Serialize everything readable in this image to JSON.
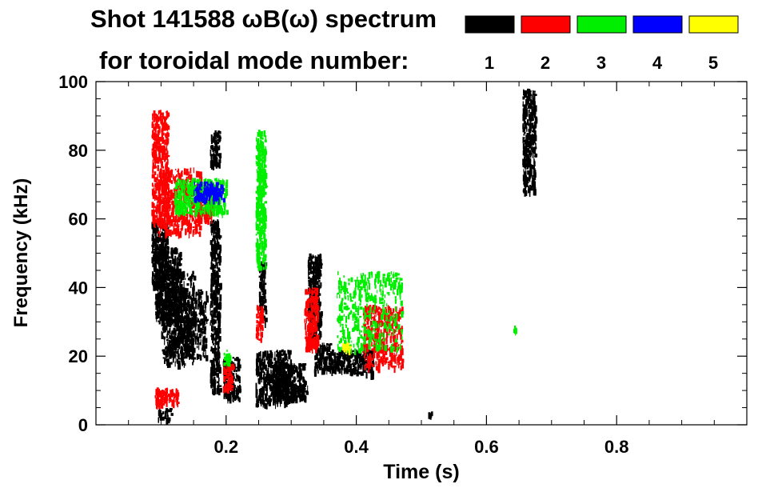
{
  "chart_data": {
    "type": "scatter",
    "title_line1": "Shot 141588 ωB(ω) spectrum",
    "title_line2": "for toroidal mode number:",
    "xlabel": "Time (s)",
    "ylabel": "Frequency (kHz)",
    "xlim": [
      0,
      1.0
    ],
    "ylim": [
      0,
      100
    ],
    "x_ticks": [
      0.2,
      0.4,
      0.6,
      0.8
    ],
    "x_tick_labels": [
      "0.2",
      "0.4",
      "0.6",
      "0.8"
    ],
    "y_ticks": [
      0,
      20,
      40,
      60,
      80,
      100
    ],
    "y_tick_labels": [
      "0",
      "20",
      "40",
      "60",
      "80",
      "100"
    ],
    "legend": [
      {
        "label": "1",
        "color": "#000000"
      },
      {
        "label": "2",
        "color": "#ff0000"
      },
      {
        "label": "3",
        "color": "#00ee00"
      },
      {
        "label": "4",
        "color": "#0000ff"
      },
      {
        "label": "5",
        "color": "#ffff00"
      }
    ],
    "series": [
      {
        "name": "1",
        "color": "#000000",
        "blobs": [
          {
            "t": [
              0.085,
              0.11
            ],
            "f": [
              40,
              60
            ]
          },
          {
            "t": [
              0.09,
              0.13
            ],
            "f": [
              30,
              52
            ]
          },
          {
            "t": [
              0.1,
              0.15
            ],
            "f": [
              18,
              45
            ]
          },
          {
            "t": [
              0.11,
              0.17
            ],
            "f": [
              20,
              40
            ]
          },
          {
            "t": [
              0.095,
              0.115
            ],
            "f": [
              2,
              5
            ]
          },
          {
            "t": [
              0.175,
              0.19
            ],
            "f": [
              76,
              86
            ]
          },
          {
            "t": [
              0.175,
              0.19
            ],
            "f": [
              10,
              60
            ]
          },
          {
            "t": [
              0.195,
              0.22
            ],
            "f": [
              8,
              20
            ]
          },
          {
            "t": [
              0.245,
              0.3
            ],
            "f": [
              6,
              22
            ]
          },
          {
            "t": [
              0.27,
              0.32
            ],
            "f": [
              8,
              18
            ]
          },
          {
            "t": [
              0.3,
              0.325
            ],
            "f": [
              8,
              12
            ]
          },
          {
            "t": [
              0.335,
              0.36
            ],
            "f": [
              16,
              24
            ]
          },
          {
            "t": [
              0.36,
              0.39
            ],
            "f": [
              16,
              22
            ]
          },
          {
            "t": [
              0.39,
              0.425
            ],
            "f": [
              15,
              22
            ]
          },
          {
            "t": [
              0.655,
              0.675
            ],
            "f": [
              68,
              98
            ]
          },
          {
            "t": [
              0.51,
              0.515
            ],
            "f": [
              3,
              4
            ]
          },
          {
            "t": [
              0.25,
              0.26
            ],
            "f": [
              30,
              48
            ]
          },
          {
            "t": [
              0.325,
              0.345
            ],
            "f": [
              25,
              50
            ]
          }
        ]
      },
      {
        "name": "2",
        "color": "#ff0000",
        "blobs": [
          {
            "t": [
              0.085,
              0.11
            ],
            "f": [
              58,
              92
            ]
          },
          {
            "t": [
              0.095,
              0.16
            ],
            "f": [
              56,
              75
            ]
          },
          {
            "t": [
              0.155,
              0.18
            ],
            "f": [
              60,
              70
            ]
          },
          {
            "t": [
              0.09,
              0.125
            ],
            "f": [
              6,
              11
            ]
          },
          {
            "t": [
              0.245,
              0.255
            ],
            "f": [
              25,
              35
            ]
          },
          {
            "t": [
              0.32,
              0.34
            ],
            "f": [
              22,
              40
            ]
          },
          {
            "t": [
              0.41,
              0.47
            ],
            "f": [
              17,
              35
            ]
          },
          {
            "t": [
              0.195,
              0.21
            ],
            "f": [
              10,
              18
            ]
          }
        ]
      },
      {
        "name": "3",
        "color": "#00ee00",
        "blobs": [
          {
            "t": [
              0.12,
              0.2
            ],
            "f": [
              62,
              72
            ]
          },
          {
            "t": [
              0.245,
              0.26
            ],
            "f": [
              46,
              86
            ]
          },
          {
            "t": [
              0.37,
              0.47
            ],
            "f": [
              22,
              45
            ]
          },
          {
            "t": [
              0.64,
              0.645
            ],
            "f": [
              27,
              29
            ]
          },
          {
            "t": [
              0.195,
              0.205
            ],
            "f": [
              18,
              22
            ]
          }
        ]
      },
      {
        "name": "4",
        "color": "#0000ff",
        "blobs": [
          {
            "t": [
              0.15,
              0.195
            ],
            "f": [
              66,
              71
            ]
          }
        ]
      },
      {
        "name": "5",
        "color": "#ffff00",
        "blobs": [
          {
            "t": [
              0.375,
              0.39
            ],
            "f": [
              22,
              24
            ]
          }
        ]
      }
    ]
  }
}
